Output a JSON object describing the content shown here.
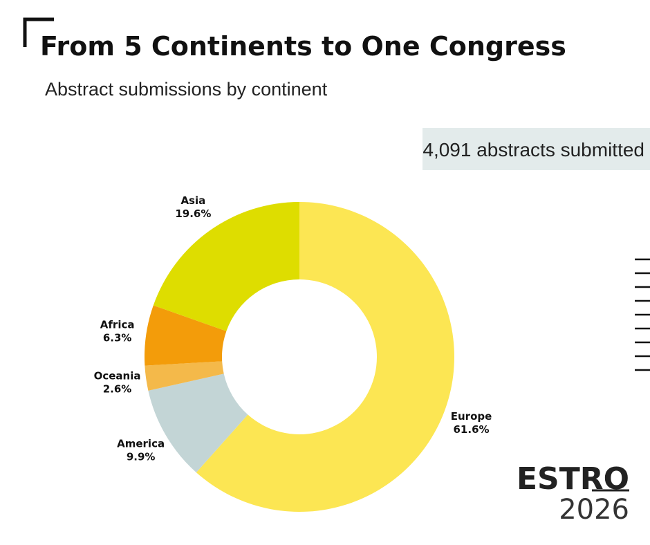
{
  "chart_data": {
    "type": "donut",
    "title": "From 5 Continents to One Congress",
    "subtitle": "Abstract submissions by continent",
    "annotation": "4,091 abstracts submitted",
    "categories": [
      "Europe",
      "America",
      "Oceania",
      "Africa",
      "Asia"
    ],
    "values": [
      61.6,
      9.9,
      2.6,
      6.3,
      19.6
    ],
    "value_labels": [
      "61.6%",
      "9.9%",
      "2.6%",
      "6.3%",
      "19.6%"
    ],
    "colors": [
      "#fce653",
      "#c3d5d6",
      "#f4b94a",
      "#f39c0a",
      "#dedd00"
    ]
  },
  "logo": {
    "name": "ESTRO",
    "year": "2026"
  }
}
